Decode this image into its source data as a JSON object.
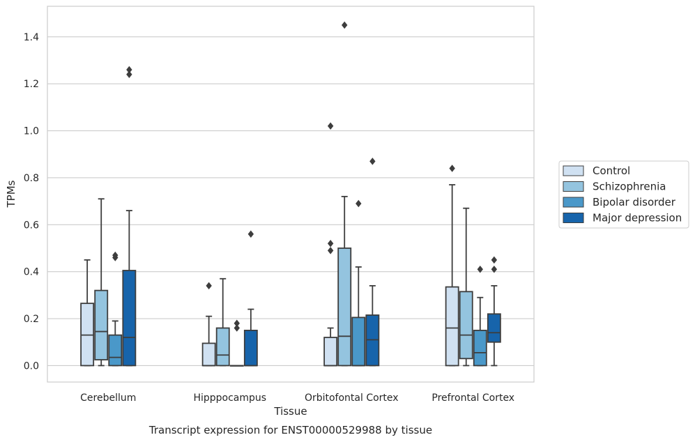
{
  "chart_data": {
    "type": "box",
    "xlabel": "Tissue",
    "ylabel": "TPMs",
    "caption": "Transcript expression for ENST00000529988 by tissue",
    "ylim": [
      -0.07,
      1.53
    ],
    "yticks": [
      "0.0",
      "0.2",
      "0.4",
      "0.6",
      "0.8",
      "1.0",
      "1.2",
      "1.4"
    ],
    "ytick_values": [
      0.0,
      0.2,
      0.4,
      0.6,
      0.8,
      1.0,
      1.2,
      1.4
    ],
    "grid": "horizontal",
    "legend_position": "center-right",
    "categories": [
      "Cerebellum",
      "Hipppocampus",
      "Orbitofontal Cortex",
      "Prefrontal Cortex"
    ],
    "series": [
      {
        "name": "Control",
        "color": "#d0e1f2",
        "boxes": [
          {
            "whislo": 0.0,
            "q1": 0.0,
            "med": 0.13,
            "q3": 0.265,
            "whishi": 0.45,
            "fliers": []
          },
          {
            "whislo": 0.0,
            "q1": 0.0,
            "med": 0.0,
            "q3": 0.095,
            "whishi": 0.21,
            "fliers": [
              0.34
            ]
          },
          {
            "whislo": 0.0,
            "q1": 0.0,
            "med": 0.0,
            "q3": 0.12,
            "whishi": 0.16,
            "fliers": [
              0.49,
              0.52,
              1.02
            ]
          },
          {
            "whislo": 0.0,
            "q1": 0.0,
            "med": 0.16,
            "q3": 0.335,
            "whishi": 0.77,
            "fliers": [
              0.84
            ]
          }
        ]
      },
      {
        "name": "Schizophrenia",
        "color": "#94c4df",
        "boxes": [
          {
            "whislo": 0.0,
            "q1": 0.025,
            "med": 0.145,
            "q3": 0.32,
            "whishi": 0.71,
            "fliers": []
          },
          {
            "whislo": 0.0,
            "q1": 0.0,
            "med": 0.045,
            "q3": 0.16,
            "whishi": 0.37,
            "fliers": []
          },
          {
            "whislo": 0.0,
            "q1": 0.0,
            "med": 0.125,
            "q3": 0.5,
            "whishi": 0.72,
            "fliers": [
              1.45
            ]
          },
          {
            "whislo": 0.0,
            "q1": 0.03,
            "med": 0.13,
            "q3": 0.315,
            "whishi": 0.67,
            "fliers": []
          }
        ]
      },
      {
        "name": "Bipolar disorder",
        "color": "#4a98c9",
        "boxes": [
          {
            "whislo": 0.0,
            "q1": 0.0,
            "med": 0.035,
            "q3": 0.13,
            "whishi": 0.19,
            "fliers": [
              0.46,
              0.47
            ]
          },
          {
            "whislo": 0.0,
            "q1": 0.0,
            "med": 0.0,
            "q3": 0.0,
            "whishi": 0.0,
            "fliers": [
              0.16,
              0.18
            ]
          },
          {
            "whislo": 0.0,
            "q1": 0.0,
            "med": 0.0,
            "q3": 0.205,
            "whishi": 0.42,
            "fliers": [
              0.69
            ]
          },
          {
            "whislo": 0.0,
            "q1": 0.0,
            "med": 0.055,
            "q3": 0.15,
            "whishi": 0.29,
            "fliers": [
              0.41
            ]
          }
        ]
      },
      {
        "name": "Major depression",
        "color": "#1764ab",
        "boxes": [
          {
            "whislo": 0.0,
            "q1": 0.0,
            "med": 0.12,
            "q3": 0.405,
            "whishi": 0.66,
            "fliers": [
              1.24,
              1.26
            ]
          },
          {
            "whislo": 0.0,
            "q1": 0.0,
            "med": 0.0,
            "q3": 0.15,
            "whishi": 0.24,
            "fliers": [
              0.56
            ]
          },
          {
            "whislo": 0.0,
            "q1": 0.0,
            "med": 0.11,
            "q3": 0.215,
            "whishi": 0.34,
            "fliers": [
              0.87
            ]
          },
          {
            "whislo": 0.0,
            "q1": 0.1,
            "med": 0.14,
            "q3": 0.22,
            "whishi": 0.34,
            "fliers": [
              0.41,
              0.45
            ]
          }
        ]
      }
    ]
  }
}
